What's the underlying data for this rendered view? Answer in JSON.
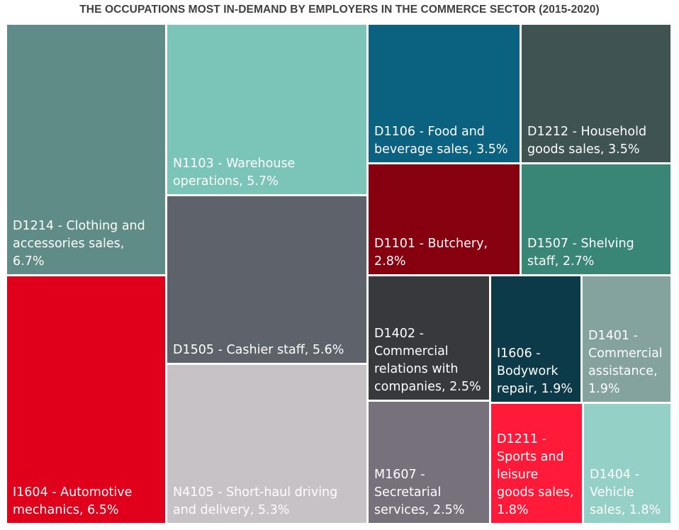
{
  "chart_data": {
    "type": "treemap",
    "title": "THE OCCUPATIONS MOST IN-DEMAND BY EMPLOYERS IN THE COMMERCE SECTOR (2015-2020)",
    "items": [
      {
        "label": "D1214 - Clothing and accessories sales, 6.7%",
        "value": 6.7,
        "color": "#5f8c86"
      },
      {
        "label": "N1103 - Warehouse operations, 5.7%",
        "value": 5.7,
        "color": "#7bc4b8"
      },
      {
        "label": "D1106 - Food and beverage sales, 3.5%",
        "value": 3.5,
        "color": "#0a6180"
      },
      {
        "label": "D1212 - Household goods sales, 3.5%",
        "value": 3.5,
        "color": "#3e5352"
      },
      {
        "label": "D1101 - Butchery, 2.8%",
        "value": 2.8,
        "color": "#870010"
      },
      {
        "label": "D1507 - Shelving staff, 2.7%",
        "value": 2.7,
        "color": "#3a8676"
      },
      {
        "label": "D1505 - Cashier staff, 5.6%",
        "value": 5.6,
        "color": "#5e636b"
      },
      {
        "label": "I1604 - Automotive mechanics, 6.5%",
        "value": 6.5,
        "color": "#e0001b"
      },
      {
        "label": "N4105 - Short-haul driving and delivery, 5.3%",
        "value": 5.3,
        "color": "#c6c2c6"
      },
      {
        "label": "D1402 - Commercial relations with companies, 2.5%",
        "value": 2.5,
        "color": "#37393d"
      },
      {
        "label": "I1606 - Bodywork repair, 1.9%",
        "value": 1.9,
        "color": "#0c3a48"
      },
      {
        "label": "D1401 - Commercial assistance, 1.9%",
        "value": 1.9,
        "color": "#84a29e"
      },
      {
        "label": "M1607 - Secretarial services, 2.5%",
        "value": 2.5,
        "color": "#77717b"
      },
      {
        "label": "D1211 - Sports and leisure goods sales, 1.8%",
        "value": 1.8,
        "color": "#ff1a3a"
      },
      {
        "label": "D1404 - Vehicle sales, 1.8%",
        "value": 1.8,
        "color": "#95d0c6"
      }
    ]
  }
}
